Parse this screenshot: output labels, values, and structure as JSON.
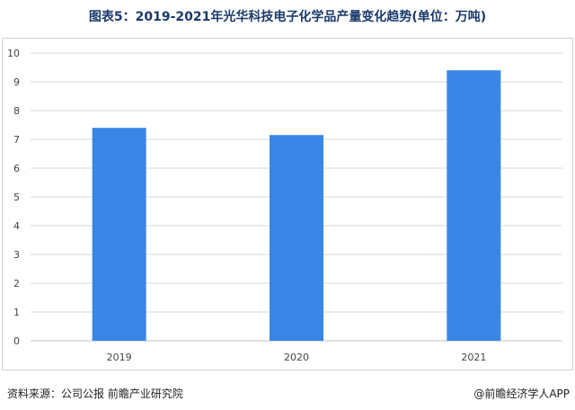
{
  "title": "图表5：2019-2021年光华科技电子化学品产量变化趋势(单位：万吨)",
  "footer": {
    "source": "资料来源：公司公报 前瞻产业研究院",
    "credit": "@前瞻经济学人APP"
  },
  "colors": {
    "bar": "#3a86e6",
    "grid": "#d9d9d9",
    "axis": "#bfbfbf"
  },
  "chart_data": {
    "type": "bar",
    "categories": [
      "2019",
      "2020",
      "2021"
    ],
    "values": [
      7.4,
      7.15,
      9.4
    ],
    "xlabel": "",
    "ylabel": "",
    "ylim": [
      0,
      10
    ],
    "yticks": [
      0,
      1,
      2,
      3,
      4,
      5,
      6,
      7,
      8,
      9,
      10
    ],
    "grid": true,
    "legend": "none"
  }
}
